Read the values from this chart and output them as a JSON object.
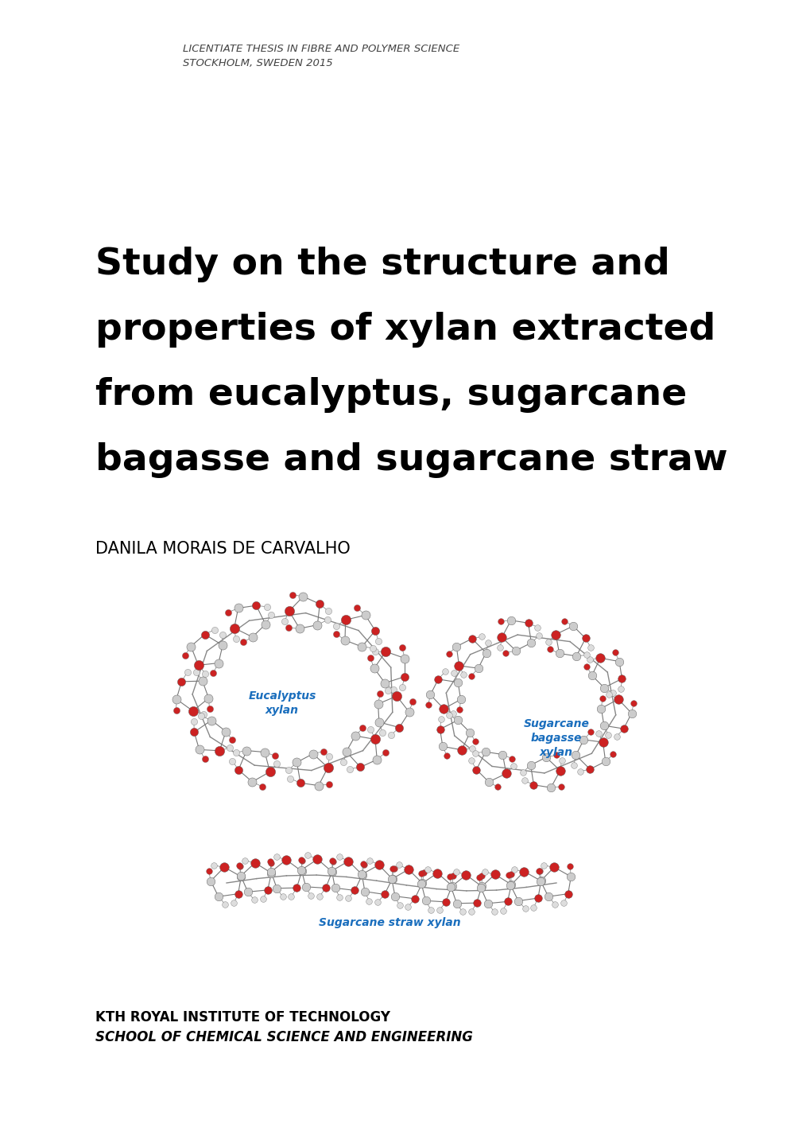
{
  "bg_color": "#ffffff",
  "header_line1": "LICENTIATE THESIS IN FIBRE AND POLYMER SCIENCE",
  "header_line2": "STOCKHOLM, SWEDEN 2015",
  "title_line1": "Study on the structure and",
  "title_line2": "properties of xylan extracted",
  "title_line3": "from eucalyptus, sugarcane",
  "title_line4": "bagasse and sugarcane straw",
  "author": "DANILA MORAIS DE CARVALHO",
  "label_eucalyptus_line1": "Eucalyptus",
  "label_eucalyptus_line2": "xylan",
  "label_bagasse_line1": "Sugarcane",
  "label_bagasse_line2": "bagasse",
  "label_bagasse_line3": "xylan",
  "label_straw": "Sugarcane straw xylan",
  "footer_line1": "KTH ROYAL INSTITUTE OF TECHNOLOGY",
  "footer_line2": "SCHOOL OF CHEMICAL SCIENCE AND ENGINEERING",
  "header_color": "#444444",
  "title_color": "#000000",
  "author_color": "#000000",
  "label_color": "#1a6ebd",
  "footer_color": "#000000",
  "header_fontsize": 9.5,
  "title_fontsize": 34,
  "author_fontsize": 15,
  "label_fontsize": 10,
  "footer_line1_fontsize": 12,
  "footer_line2_fontsize": 12,
  "figwidth": 10.2,
  "figheight": 14.42
}
